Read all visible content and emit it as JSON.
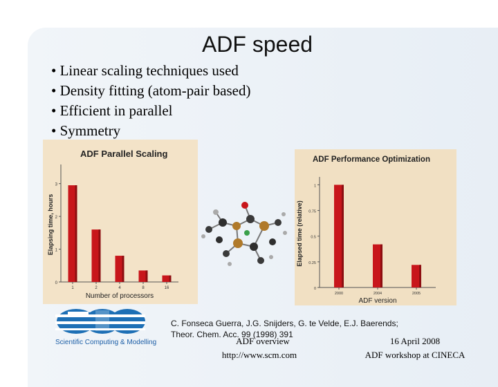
{
  "slide": {
    "title": "ADF speed",
    "bullets": [
      "• Linear scaling techniques used",
      "• Density fitting (atom-pair based)",
      "• Efficient in parallel",
      "• Symmetry"
    ],
    "citation_line1": "C. Fonseca Guerra, J.G. Snijders, G. te Velde, E.J. Baerends;",
    "citation_line2": "Theor. Chem. Acc. 99 (1998) 391",
    "footer_center_line1": "ADF overview",
    "footer_center_line2": "http://www.scm.com",
    "footer_right_line1": "16 April 2008",
    "footer_right_line2": "ADF workshop at CINECA",
    "logo_text": "Scientific Computing & Modelling",
    "colors": {
      "bar": "#c8161b",
      "bar_shade": "#8e0e11",
      "chart_bg": "#f3e3c8",
      "chart_bg2": "#f1e0c3",
      "logo_blue": "#1d6fb5"
    }
  },
  "chart_data": [
    {
      "type": "bar",
      "title": "ADF Parallel Scaling",
      "xlabel": "Number of processors",
      "ylabel": "Elapsing time, hours",
      "categories": [
        "1",
        "2",
        "4",
        "8",
        "16"
      ],
      "values": [
        2.95,
        1.6,
        0.8,
        0.35,
        0.2
      ],
      "ylim": [
        0,
        3.5
      ],
      "yticks": [
        "0",
        "1",
        "2",
        "3"
      ]
    },
    {
      "type": "bar",
      "title": "ADF Performance Optimization",
      "xlabel": "ADF version",
      "ylabel": "Elapsed time (relative)",
      "categories": [
        "2000",
        "2004",
        "2005"
      ],
      "values": [
        1.0,
        0.42,
        0.22
      ],
      "ylim": [
        0,
        1.05
      ],
      "yticks": [
        "0",
        "0.25",
        "0.5",
        "0.75",
        "1"
      ]
    }
  ]
}
